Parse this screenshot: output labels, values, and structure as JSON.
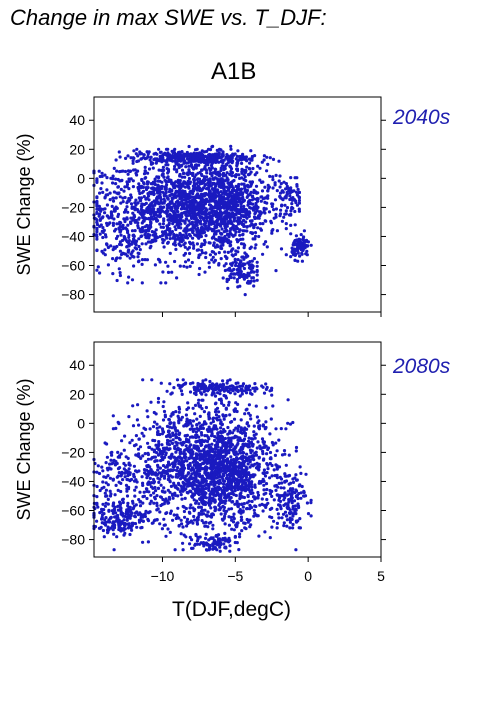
{
  "page_title": "Change in max SWE vs. T_DJF:",
  "scenario_label": "A1B",
  "colors": {
    "points": "#1a1ac0",
    "period_label": "#2020b0",
    "frame": "#000000"
  },
  "chart_data": [
    {
      "type": "scatter",
      "period_label": "2040s",
      "xlabel": "",
      "ylabel": "SWE Change (%)",
      "xlim": [
        -14.7,
        5
      ],
      "ylim": [
        -92,
        56
      ],
      "xticks": [
        -10,
        -5,
        0,
        5
      ],
      "xtick_labels": [],
      "yticks": [
        -80,
        -60,
        -40,
        -20,
        0,
        20,
        40
      ],
      "ytick_labels": [
        "−80",
        "−60",
        "−40",
        "−20",
        "0",
        "20",
        "40"
      ],
      "clusters": [
        {
          "x": -8.5,
          "y": -20,
          "sx": 2.8,
          "sy": 17,
          "n": 1300,
          "xmin": -14.5,
          "xmax": -1.2,
          "ymin": -72,
          "ymax": 20
        },
        {
          "x": -5.8,
          "y": -18,
          "sx": 1.6,
          "sy": 16,
          "n": 700,
          "xmin": -10,
          "xmax": -1.5,
          "ymin": -78,
          "ymax": 22
        },
        {
          "x": -8.0,
          "y": 14,
          "sx": 2.0,
          "sy": 2.2,
          "n": 320,
          "xmin": -13.5,
          "xmax": -2.0,
          "ymin": 8,
          "ymax": 19
        },
        {
          "x": -12.5,
          "y": -30,
          "sx": 1.2,
          "sy": 18,
          "n": 220,
          "xmin": -14.7,
          "xmax": -9.5,
          "ymin": -72,
          "ymax": 5
        },
        {
          "x": -4.7,
          "y": -63,
          "sx": 0.6,
          "sy": 6,
          "n": 120,
          "xmin": -6.5,
          "xmax": -3.5,
          "ymin": -80,
          "ymax": -50
        },
        {
          "x": -1.2,
          "y": -13,
          "sx": 0.5,
          "sy": 7,
          "n": 70,
          "xmin": -2.2,
          "xmax": -0.6,
          "ymin": -32,
          "ymax": 2
        },
        {
          "x": -0.5,
          "y": -47,
          "sx": 0.3,
          "sy": 4,
          "n": 90,
          "xmin": -1.1,
          "xmax": 0.3,
          "ymin": -57,
          "ymax": -35
        }
      ]
    },
    {
      "type": "scatter",
      "period_label": "2080s",
      "xlabel": "T(DJF,degC)",
      "ylabel": "SWE Change (%)",
      "xlim": [
        -14.7,
        5
      ],
      "ylim": [
        -92,
        56
      ],
      "xticks": [
        -10,
        -5,
        0,
        5
      ],
      "xtick_labels": [
        "−10",
        "−5",
        "0",
        "5"
      ],
      "yticks": [
        -80,
        -60,
        -40,
        -20,
        0,
        20,
        40
      ],
      "ytick_labels": [
        "−80",
        "−60",
        "−40",
        "−20",
        "0",
        "20",
        "40"
      ],
      "clusters": [
        {
          "x": -7.5,
          "y": -30,
          "sx": 2.6,
          "sy": 22,
          "n": 1400,
          "xmin": -14.5,
          "xmax": -0.8,
          "ymin": -87,
          "ymax": 30
        },
        {
          "x": -5.5,
          "y": -35,
          "sx": 1.6,
          "sy": 18,
          "n": 650,
          "xmin": -10,
          "xmax": -1.5,
          "ymin": -88,
          "ymax": 28
        },
        {
          "x": -6.0,
          "y": 24,
          "sx": 1.6,
          "sy": 2.2,
          "n": 160,
          "xmin": -9.5,
          "xmax": -2.5,
          "ymin": 18,
          "ymax": 31
        },
        {
          "x": -12.8,
          "y": -65,
          "sx": 1.0,
          "sy": 6,
          "n": 200,
          "xmin": -14.7,
          "xmax": -10.5,
          "ymin": -78,
          "ymax": -50
        },
        {
          "x": -13.0,
          "y": -35,
          "sx": 1.0,
          "sy": 8,
          "n": 90,
          "xmin": -14.7,
          "xmax": -11,
          "ymin": -50,
          "ymax": -20
        },
        {
          "x": -1.3,
          "y": -52,
          "sx": 0.6,
          "sy": 10,
          "n": 130,
          "xmin": -2.5,
          "xmax": 0.2,
          "ymin": -72,
          "ymax": -30
        },
        {
          "x": -6.8,
          "y": -82,
          "sx": 0.8,
          "sy": 3,
          "n": 60,
          "xmin": -8,
          "xmax": -5,
          "ymin": -88,
          "ymax": -72
        }
      ]
    }
  ]
}
